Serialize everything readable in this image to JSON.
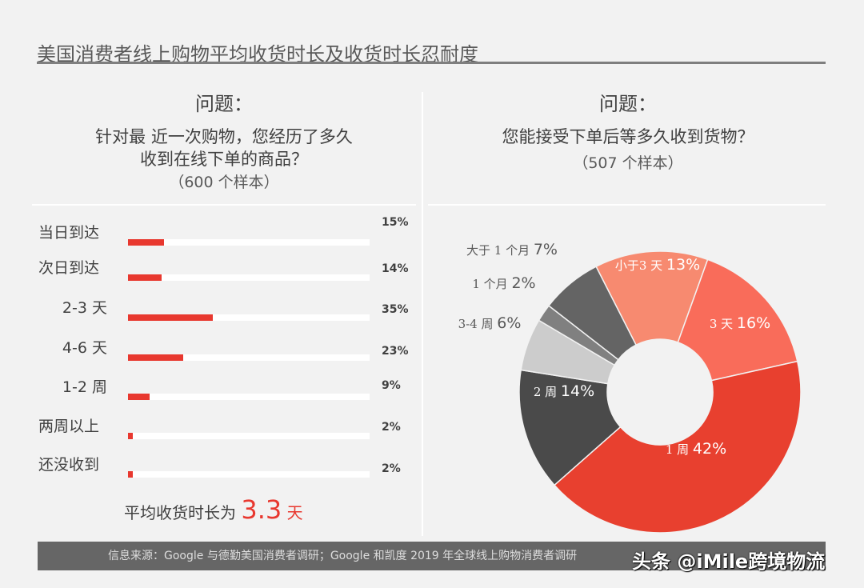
{
  "title": "美国消费者线上购物平均收货时长及收货时长忍耐度",
  "left": {
    "q_head": "问题：",
    "q_line1": "针对最 近一次购物，您经历了多久",
    "q_line2": "收到在线下单的商品？",
    "sample": "（600 个样本）",
    "avg_prefix": "平均收货时长为",
    "avg_value": "3.3",
    "avg_unit": "天"
  },
  "right": {
    "q_head": "问题：",
    "q_line1": "您能接受下单后等多久收到货物？",
    "sample": "（507 个样本）"
  },
  "footer": {
    "source": "信息来源：Google 与德勤美国消费者调研；Google 和凯度 2019 年全球线上购物消费者调研"
  },
  "watermark": "头条 @iMile跨境物流",
  "chart_data": [
    {
      "type": "bar",
      "orientation": "horizontal",
      "categories": [
        "当日到达",
        "次日到达",
        "2-3 天",
        "4-6 天",
        "1-2 周",
        "两周以上",
        "还没收到"
      ],
      "values": [
        15,
        14,
        35,
        23,
        9,
        2,
        2
      ],
      "labels": [
        "15%",
        "14%",
        "35%",
        "23%",
        "9%",
        "2%",
        "2%"
      ],
      "xlim": [
        0,
        100
      ],
      "color": "#e8382f"
    },
    {
      "type": "pie",
      "donut": true,
      "slices": [
        {
          "label": "小于3 天",
          "value": 13,
          "text": "13%",
          "color": "#f78a70"
        },
        {
          "label": "3 天",
          "value": 16,
          "text": "16%",
          "color": "#f96c5a"
        },
        {
          "label": "1 周",
          "value": 42,
          "text": "42%",
          "color": "#e8402f"
        },
        {
          "label": "2 周",
          "value": 14,
          "text": "14%",
          "color": "#4a4a4a"
        },
        {
          "label": "3-4 周",
          "value": 6,
          "text": "6%",
          "color": "#cccccc"
        },
        {
          "label": "1 个月",
          "value": 2,
          "text": "2%",
          "color": "#808080"
        },
        {
          "label": "大于 1 个月",
          "value": 7,
          "text": "7%",
          "color": "#646464"
        }
      ]
    }
  ]
}
